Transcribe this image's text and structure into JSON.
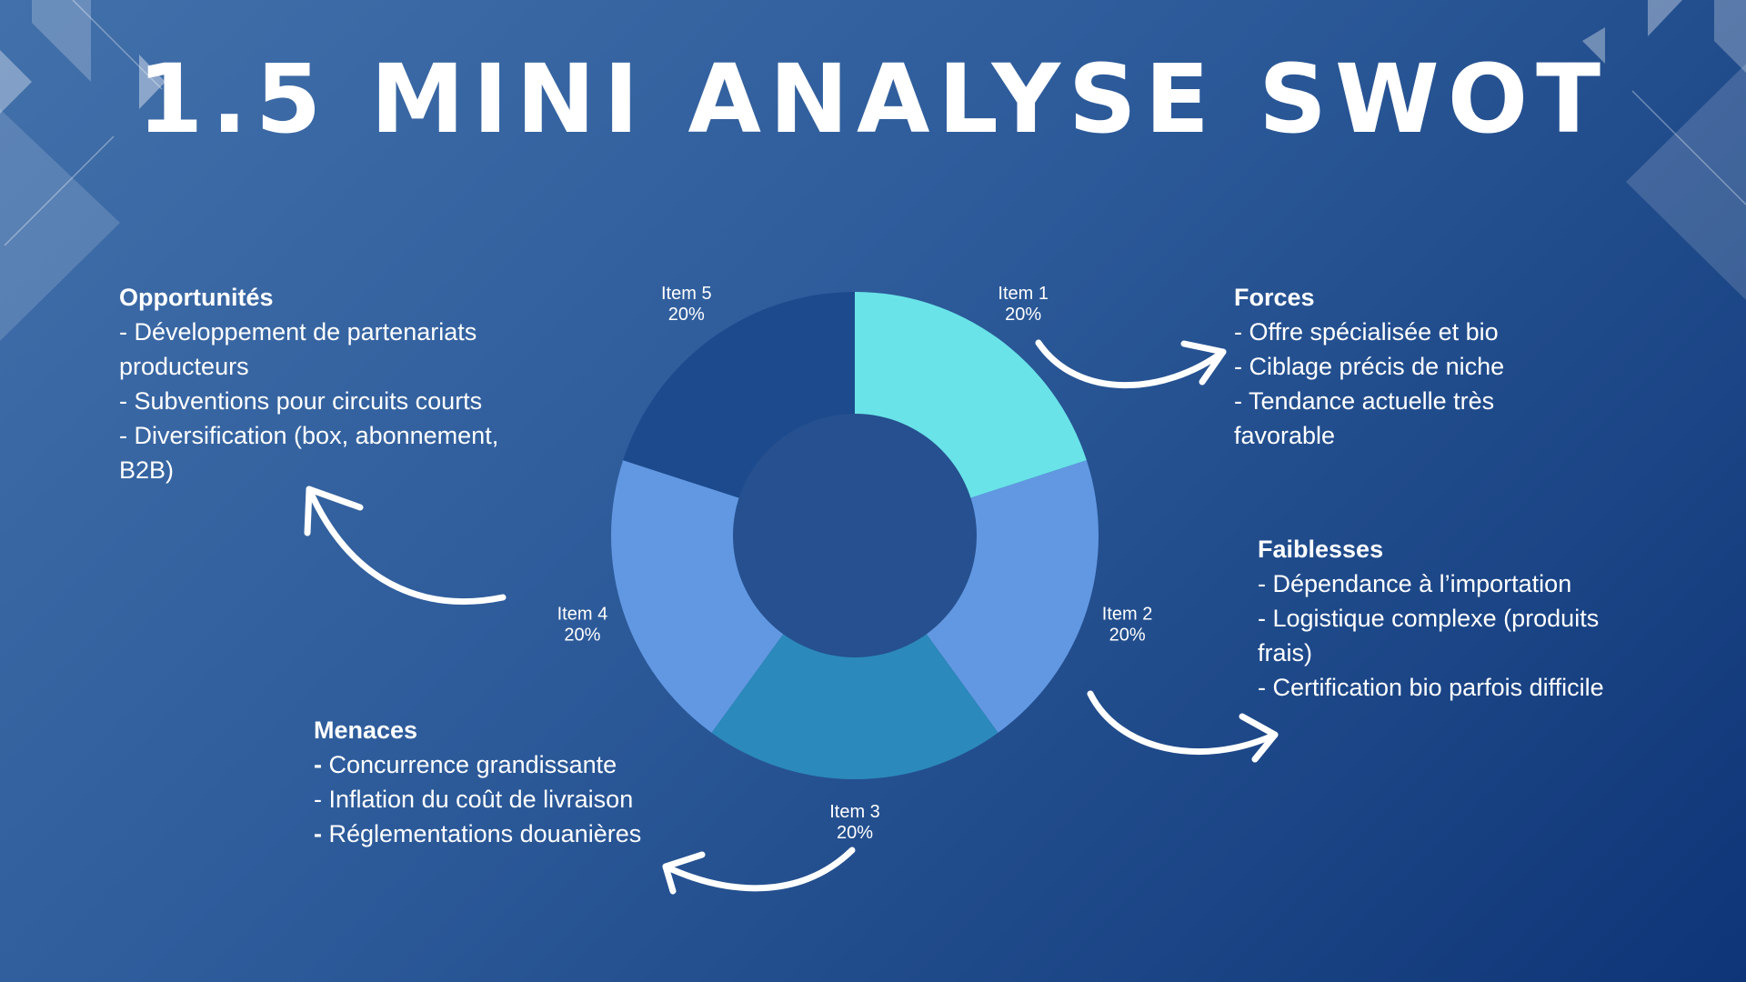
{
  "title": "1.5 MINI ANALYSE SWOT",
  "colors": {
    "background_start": "#4270aa",
    "background_end": "#0e3577",
    "donut_center": "#26508f",
    "arrow": "#ffffff",
    "text": "#ffffff"
  },
  "chart_data": {
    "type": "pie",
    "variant": "donut",
    "title": "",
    "categories": [
      "Item 1",
      "Item 2",
      "Item 3",
      "Item 4",
      "Item 5"
    ],
    "values": [
      20,
      20,
      20,
      20,
      20
    ],
    "labels": [
      "20%",
      "20%",
      "20%",
      "20%",
      "20%"
    ],
    "colors": [
      "#69e3e8",
      "#6298e2",
      "#2b89bb",
      "#6298e2",
      "#1c4a8d"
    ],
    "legend": "none"
  },
  "swot": {
    "opportunites": {
      "heading": "Opportunités",
      "items": [
        {
          "dash": "- ",
          "text": "Développement de partenariats producteurs"
        },
        {
          "dash": "- ",
          "text": "Subventions pour circuits courts"
        },
        {
          "dash": "- ",
          "text": "Diversification (box, abonnement, B2B)"
        }
      ]
    },
    "forces": {
      "heading": "Forces",
      "items": [
        {
          "dash": "- ",
          "text": "Offre spécialisée et bio"
        },
        {
          "dash": "- ",
          "text": "Ciblage précis de niche"
        },
        {
          "dash": "- ",
          "text": "Tendance actuelle très favorable"
        }
      ]
    },
    "faiblesses": {
      "heading": "Faiblesses",
      "items": [
        {
          "dash": "- ",
          "text": "Dépendance à l’importation"
        },
        {
          "dash": "- ",
          "text": "Logistique complexe (produits frais)"
        },
        {
          "dash": "- ",
          "text": "Certification bio parfois difficile"
        }
      ]
    },
    "menaces": {
      "heading": "Menaces",
      "items": [
        {
          "dash": "- ",
          "text": "Concurrence grandissante"
        },
        {
          "dash": "- ",
          "text": "Inflation du coût de livraison"
        },
        {
          "dash": "- ",
          "text": "Réglementations douanières"
        }
      ]
    }
  }
}
